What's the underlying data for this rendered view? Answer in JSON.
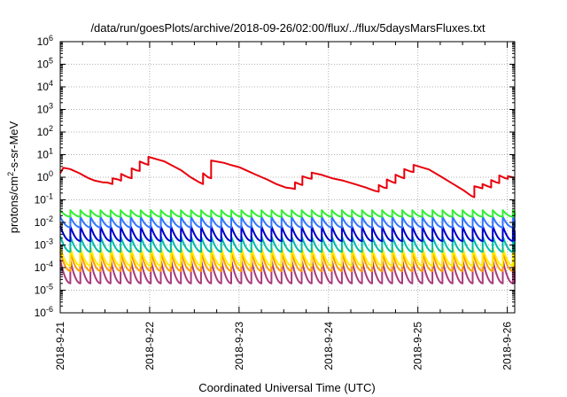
{
  "chart_data": {
    "type": "line",
    "title": "/data/run/goesPlots/archive/2018-09-26/02:00/flux/../flux/5daysMarsFluxes.txt",
    "xlabel": "Coordinated Universal Time (UTC)",
    "ylabel_main": "protons/cm",
    "ylabel_sup": "2",
    "ylabel_tail": "-s-sr-MeV",
    "yscale": "log",
    "ylim": [
      1e-06,
      1000000.0
    ],
    "xlim": [
      "2018-09-21 00:00",
      "2018-09-26 02:00"
    ],
    "grid": true,
    "ytick_labels": [
      {
        "base": "10",
        "exp": "-6"
      },
      {
        "base": "10",
        "exp": "-5"
      },
      {
        "base": "10",
        "exp": "-4"
      },
      {
        "base": "10",
        "exp": "-3"
      },
      {
        "base": "10",
        "exp": "-2"
      },
      {
        "base": "10",
        "exp": "-1"
      },
      {
        "base": "10",
        "exp": "0"
      },
      {
        "base": "10",
        "exp": "1"
      },
      {
        "base": "10",
        "exp": "2"
      },
      {
        "base": "10",
        "exp": "3"
      },
      {
        "base": "10",
        "exp": "4"
      },
      {
        "base": "10",
        "exp": "5"
      },
      {
        "base": "10",
        "exp": "6"
      }
    ],
    "xtick_labels": [
      "2018-9-21",
      "2018-9-22",
      "2018-9-23",
      "2018-9-24",
      "2018-9-25",
      "2018-9-26"
    ],
    "series": [
      {
        "color": "#e8000b",
        "points": [
          [
            "2018-09-21 00:00",
            1.5
          ],
          [
            "2018-09-21 00:50",
            2.6
          ],
          [
            "2018-09-21 02:40",
            2.3
          ],
          [
            "2018-09-21 05:10",
            1.5
          ],
          [
            "2018-09-21 07:40",
            0.9
          ],
          [
            "2018-09-21 09:20",
            0.7
          ],
          [
            "2018-09-21 11:20",
            0.6
          ],
          [
            "2018-09-21 12:40",
            0.58
          ],
          [
            "2018-09-21 14:00",
            0.5
          ],
          [
            "2018-09-21 14:00",
            0.9
          ],
          [
            "2018-09-21 15:30",
            0.8
          ],
          [
            "2018-09-21 16:20",
            0.7
          ],
          [
            "2018-09-21 16:20",
            1.4
          ],
          [
            "2018-09-21 18:10",
            1.0
          ],
          [
            "2018-09-21 19:10",
            0.9
          ],
          [
            "2018-09-21 19:10",
            2.5
          ],
          [
            "2018-09-21 20:30",
            2.0
          ],
          [
            "2018-09-21 21:20",
            1.9
          ],
          [
            "2018-09-21 21:20",
            5.0
          ],
          [
            "2018-09-21 22:40",
            4.0
          ],
          [
            "2018-09-21 23:40",
            3.5
          ],
          [
            "2018-09-21 23:40",
            8.0
          ],
          [
            "2018-09-22 04:00",
            5.0
          ],
          [
            "2018-09-22 08:30",
            2.0
          ],
          [
            "2018-09-22 11:00",
            1.0
          ],
          [
            "2018-09-22 13:20",
            0.6
          ],
          [
            "2018-09-22 14:20",
            0.5
          ],
          [
            "2018-09-22 14:20",
            1.5
          ],
          [
            "2018-09-22 15:40",
            1.0
          ],
          [
            "2018-09-22 16:30",
            0.9
          ],
          [
            "2018-09-22 16:30",
            5.5
          ],
          [
            "2018-09-22 20:00",
            4.3
          ],
          [
            "2018-09-22 22:00",
            3.4
          ],
          [
            "2018-09-23 00:00",
            2.8
          ],
          [
            "2018-09-23 02:00",
            2.0
          ],
          [
            "2018-09-23 04:30",
            1.3
          ],
          [
            "2018-09-23 07:30",
            0.8
          ],
          [
            "2018-09-23 10:00",
            0.5
          ],
          [
            "2018-09-23 12:30",
            0.35
          ],
          [
            "2018-09-23 14:20",
            0.32
          ],
          [
            "2018-09-23 15:00",
            0.3
          ],
          [
            "2018-09-23 15:00",
            0.6
          ],
          [
            "2018-09-23 16:10",
            0.5
          ],
          [
            "2018-09-23 17:00",
            0.45
          ],
          [
            "2018-09-23 17:00",
            1.1
          ],
          [
            "2018-09-23 18:40",
            0.9
          ],
          [
            "2018-09-23 19:30",
            0.85
          ],
          [
            "2018-09-23 19:30",
            1.6
          ],
          [
            "2018-09-23 22:00",
            1.3
          ],
          [
            "2018-09-24 01:00",
            0.9
          ],
          [
            "2018-09-24 04:00",
            0.7
          ],
          [
            "2018-09-24 07:00",
            0.5
          ],
          [
            "2018-09-24 10:00",
            0.35
          ],
          [
            "2018-09-24 12:30",
            0.25
          ],
          [
            "2018-09-24 13:30",
            0.23
          ],
          [
            "2018-09-24 13:30",
            0.45
          ],
          [
            "2018-09-24 14:50",
            0.35
          ],
          [
            "2018-09-24 15:40",
            0.33
          ],
          [
            "2018-09-24 15:40",
            0.8
          ],
          [
            "2018-09-24 17:20",
            0.6
          ],
          [
            "2018-09-24 18:00",
            0.55
          ],
          [
            "2018-09-24 18:00",
            1.3
          ],
          [
            "2018-09-24 19:30",
            1.0
          ],
          [
            "2018-09-24 20:20",
            0.9
          ],
          [
            "2018-09-24 20:20",
            2.3
          ],
          [
            "2018-09-24 22:00",
            1.8
          ],
          [
            "2018-09-24 22:50",
            1.7
          ],
          [
            "2018-09-24 22:50",
            3.5
          ],
          [
            "2018-09-25 03:00",
            2.2
          ],
          [
            "2018-09-25 06:30",
            1.0
          ],
          [
            "2018-09-25 09:30",
            0.5
          ],
          [
            "2018-09-25 12:30",
            0.25
          ],
          [
            "2018-09-25 14:20",
            0.15
          ],
          [
            "2018-09-25 15:10",
            0.13
          ],
          [
            "2018-09-25 15:10",
            0.4
          ],
          [
            "2018-09-25 16:30",
            0.35
          ],
          [
            "2018-09-25 17:20",
            0.32
          ],
          [
            "2018-09-25 17:20",
            0.5
          ],
          [
            "2018-09-25 18:40",
            0.4
          ],
          [
            "2018-09-25 19:40",
            0.35
          ],
          [
            "2018-09-25 19:40",
            0.75
          ],
          [
            "2018-09-25 21:00",
            0.6
          ],
          [
            "2018-09-25 21:50",
            0.55
          ],
          [
            "2018-09-25 21:50",
            1.2
          ],
          [
            "2018-09-25 23:30",
            0.9
          ],
          [
            "2018-09-26 00:10",
            0.85
          ],
          [
            "2018-09-26 00:10",
            1.1
          ],
          [
            "2018-09-26 02:00",
            0.95
          ]
        ]
      },
      {
        "color": "#33ee33",
        "sawtooth": {
          "high": 0.035,
          "low": 0.018,
          "period_hours": 2.7
        }
      },
      {
        "color": "#3377ff",
        "sawtooth": {
          "high": 0.018,
          "low": 0.006,
          "period_hours": 2.7
        }
      },
      {
        "color": "#0000cc",
        "sawtooth": {
          "high": 0.007,
          "low": 0.0015,
          "period_hours": 2.7
        }
      },
      {
        "color": "#00bbaa",
        "sawtooth": {
          "high": 0.0025,
          "low": 0.0005,
          "period_hours": 2.7
        }
      },
      {
        "color": "#ffee00",
        "sawtooth": {
          "high": 0.0008,
          "low": 0.00012,
          "period_hours": 2.7
        }
      },
      {
        "color": "#ff9900",
        "sawtooth": {
          "high": 0.0005,
          "low": 7e-05,
          "period_hours": 2.7
        }
      },
      {
        "color": "#a83b7a",
        "sawtooth": {
          "high": 0.00022,
          "low": 2e-05,
          "period_hours": 2.7
        }
      }
    ]
  }
}
